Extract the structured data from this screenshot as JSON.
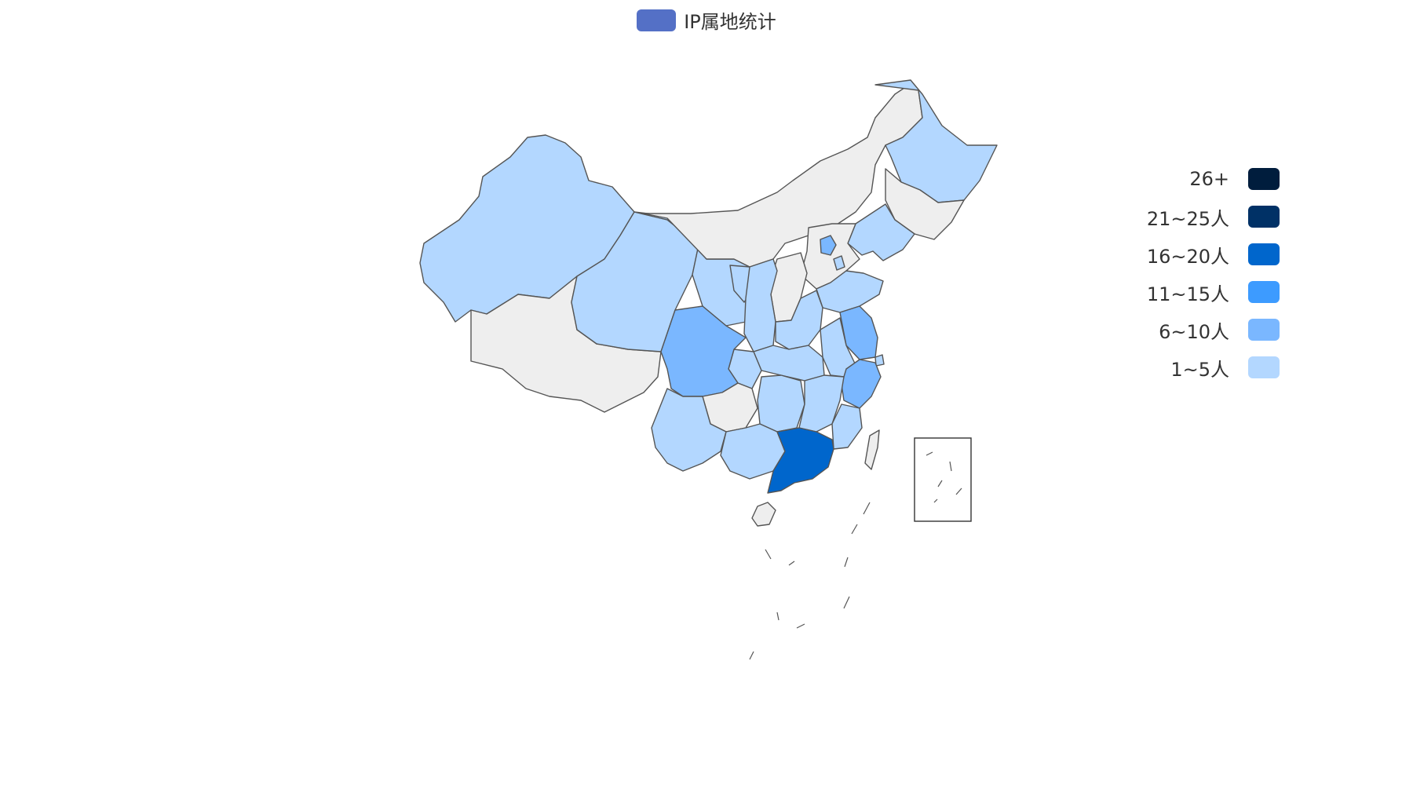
{
  "legend": {
    "label": "IP属地统计",
    "color": "#5470c6"
  },
  "visual_map": {
    "pieces": [
      {
        "label": "26+",
        "color": "#001d3d"
      },
      {
        "label": "21~25人",
        "color": "#003166"
      },
      {
        "label": "16~20人",
        "color": "#0066cc"
      },
      {
        "label": "11~15人",
        "color": "#3d9bff"
      },
      {
        "label": "6~10人",
        "color": "#7ab7ff"
      },
      {
        "label": "1~5人",
        "color": "#b3d7ff"
      }
    ],
    "no_data_color": "#eeeeee"
  },
  "chart_data": {
    "type": "map",
    "series": [
      {
        "name": "IP属地统计"
      }
    ],
    "regions": [
      {
        "level": "1~5人"
      },
      {
        "level": "6~10人"
      },
      {
        "level": "16~20人"
      },
      {
        "level": "no-data"
      }
    ]
  }
}
